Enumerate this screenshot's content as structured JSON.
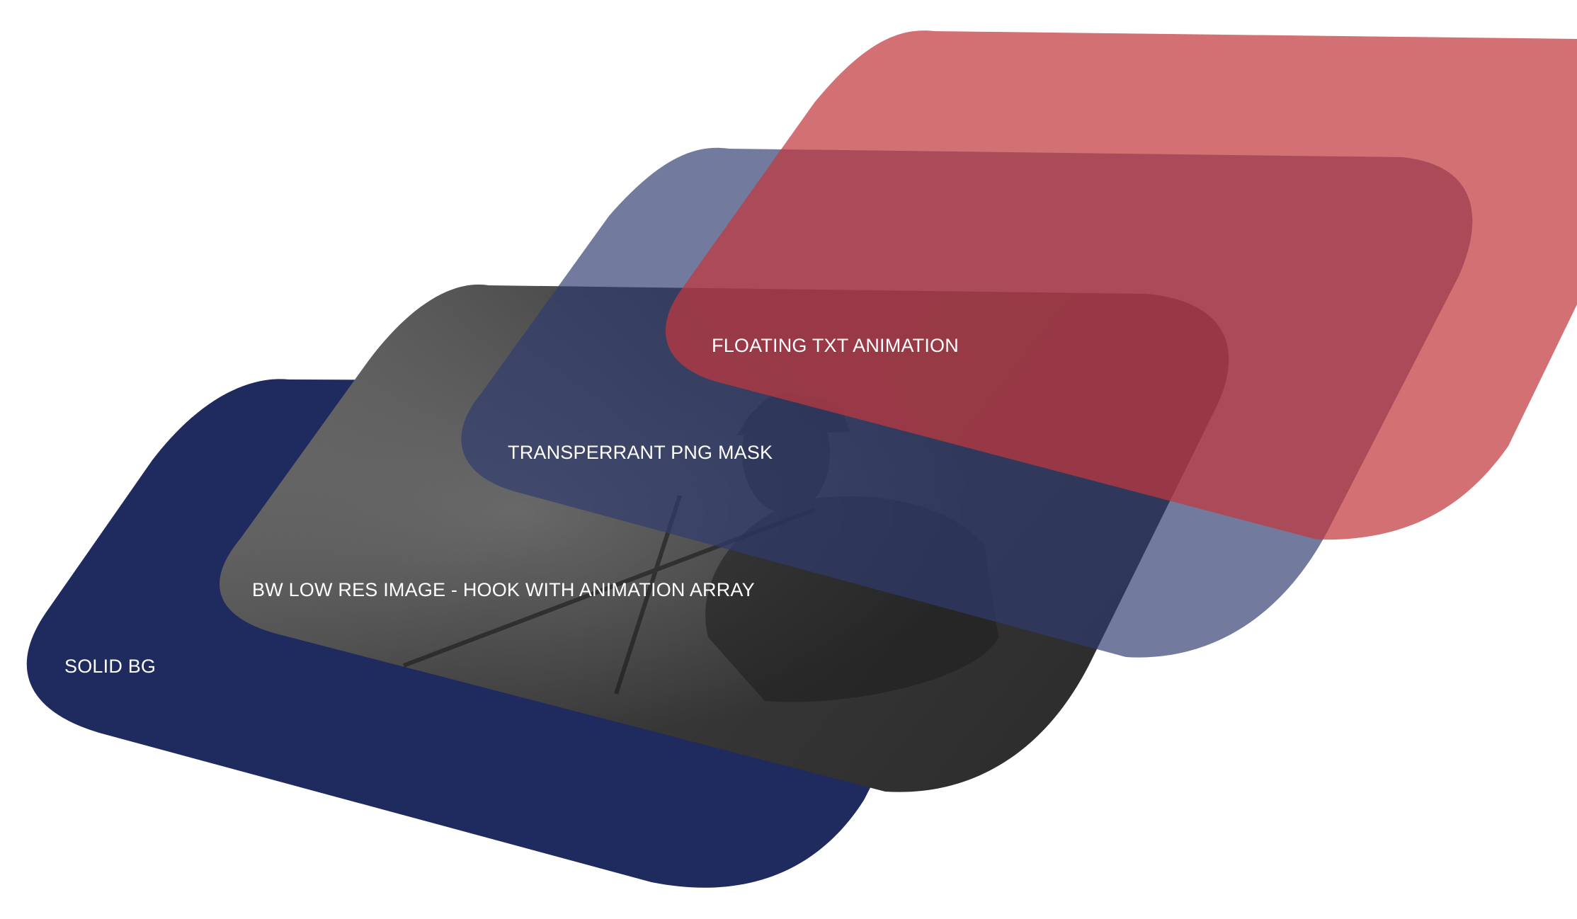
{
  "layers": {
    "solid_bg": {
      "label": "SOLID BG",
      "color": "#1f2a5e"
    },
    "bw_image": {
      "label": "BW LOW RES IMAGE - HOOK WITH ANIMATION ARRAY",
      "color": "#3a3a3a"
    },
    "png_mask": {
      "label": "TRANSPERRANT PNG MASK",
      "color": "#2f3b6e"
    },
    "floating_txt": {
      "label": "FLOATING TXT ANIMATION",
      "color": "#c0393e"
    }
  }
}
